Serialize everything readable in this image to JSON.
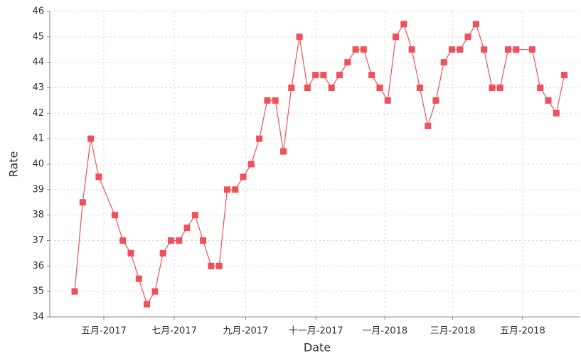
{
  "chart_data": {
    "type": "line",
    "x_label": "Date",
    "y_label": "Rate",
    "x": [
      0,
      1,
      2,
      3,
      5,
      6,
      7,
      8,
      9,
      10,
      11,
      12,
      13,
      14,
      15,
      16,
      17,
      18,
      19,
      20,
      21,
      22,
      23,
      24,
      25,
      26,
      27,
      28,
      29,
      30,
      31,
      32,
      33,
      34,
      35,
      36,
      37,
      38,
      39,
      40,
      41,
      42,
      43,
      44,
      45,
      46,
      47,
      48,
      49,
      50,
      51,
      52,
      53,
      54,
      55,
      57,
      58,
      59,
      60,
      61
    ],
    "series": [
      {
        "color": "#f0505a",
        "values": [
          35,
          38.5,
          41,
          39.5,
          38,
          37,
          36.5,
          35.5,
          34.5,
          35,
          36.5,
          37,
          37,
          37.5,
          38,
          37,
          36,
          36,
          39,
          39,
          39.5,
          40,
          41,
          42.5,
          42.5,
          40.5,
          43,
          45,
          43,
          43.5,
          43.5,
          43,
          43.5,
          44,
          44.5,
          44.5,
          43.5,
          43,
          42.5,
          45,
          45.5,
          44.5,
          43,
          41.5,
          42.5,
          44,
          44.5,
          44.5,
          45,
          45.5,
          44.5,
          43,
          43,
          44.5,
          44.5,
          44.5,
          43,
          42.5,
          42,
          43.5
        ]
      }
    ],
    "xlim": [
      -3.1,
      62.9
    ],
    "xticks": [
      {
        "value": 3.63,
        "label": "五月-2017"
      },
      {
        "value": 12.4,
        "label": "七月-2017"
      },
      {
        "value": 21.3,
        "label": "九月-2017"
      },
      {
        "value": 30.05,
        "label": "十一月-2017"
      },
      {
        "value": 38.65,
        "label": "一月-2018"
      },
      {
        "value": 47.1,
        "label": "三月-2018"
      },
      {
        "value": 55.8,
        "label": "五月-2018"
      }
    ],
    "ylim": [
      34,
      46
    ],
    "yticks": [
      34,
      35,
      36,
      37,
      38,
      39,
      40,
      41,
      42,
      43,
      44,
      45,
      46
    ],
    "grid": true
  }
}
